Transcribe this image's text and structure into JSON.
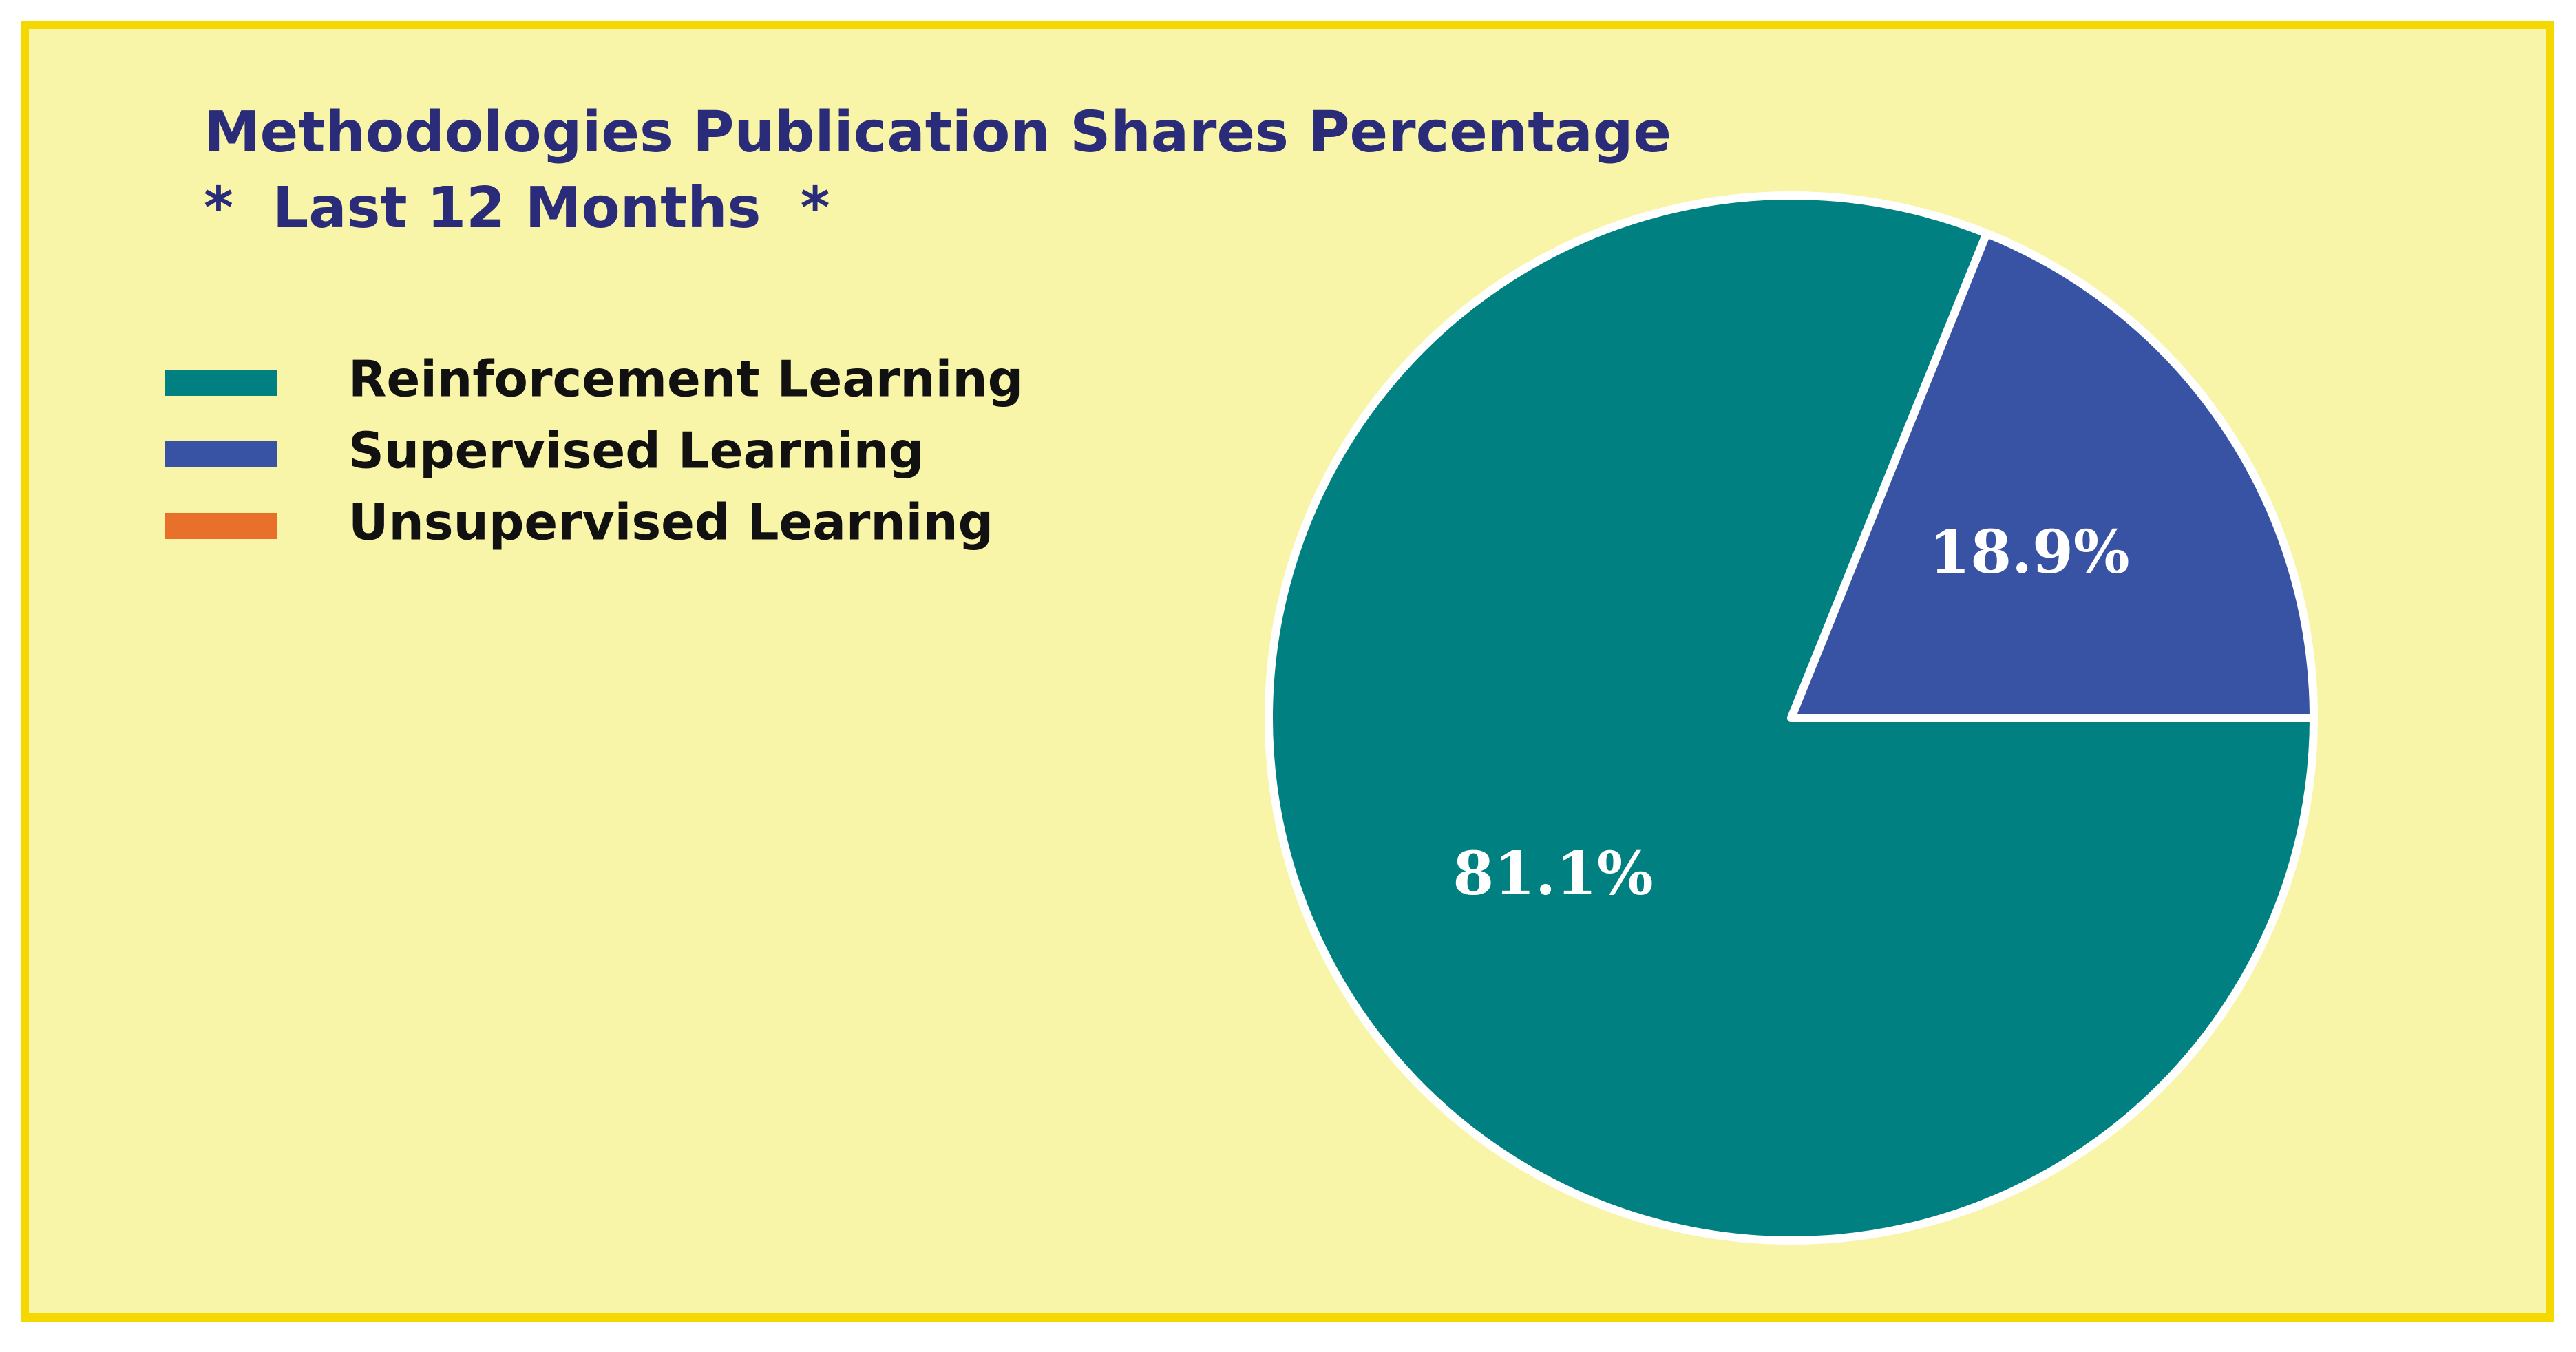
{
  "chart_data": {
    "type": "pie",
    "title": "Methodologies Publication Shares Percentage",
    "subtitle": "*  Last 12 Months  *",
    "categories": [
      "Reinforcement Learning",
      "Supervised Learning",
      "Unsupervised Learning"
    ],
    "values": [
      81.1,
      18.9,
      0
    ],
    "value_labels": [
      "81.1%",
      "18.9%",
      null
    ],
    "colors": [
      "#008080",
      "#3953a4",
      "#e8702a"
    ],
    "legend": "upper left"
  }
}
